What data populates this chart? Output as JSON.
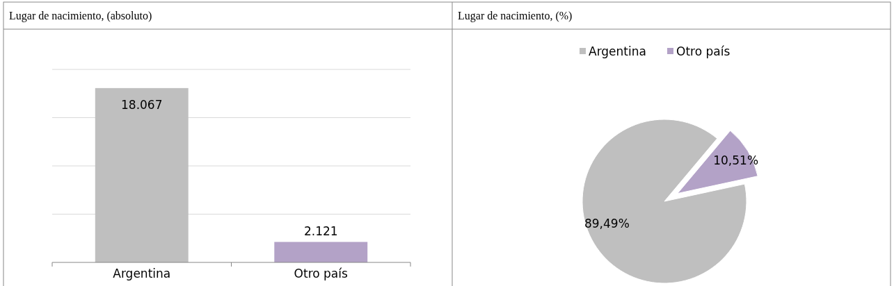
{
  "chart_data": [
    {
      "type": "bar",
      "title": "Lugar de nacimiento, (absoluto)",
      "categories": [
        "Argentina",
        "Otro país"
      ],
      "values": [
        18067,
        2121
      ],
      "colors": [
        "#bfbfbf",
        "#b3a2c7"
      ],
      "value_labels": [
        "18.067",
        "2.121"
      ],
      "ylim": [
        0,
        20000
      ],
      "yticks": [
        {
          "value": 0,
          "label": null
        },
        {
          "value": 5000,
          "label": null
        },
        {
          "value": 10000,
          "label": null
        },
        {
          "value": 15000,
          "label": null
        },
        {
          "value": 20000,
          "label": null
        }
      ],
      "grid": "y",
      "tick_labels": "x"
    },
    {
      "type": "pie",
      "title": "Lugar de nacimiento, (%)",
      "categories": [
        "Argentina",
        "Otro país"
      ],
      "values": [
        89.49,
        10.51
      ],
      "colors": [
        "#bfbfbf",
        "#b3a2c7"
      ],
      "value_labels": [
        "89,49%",
        "10,51%"
      ],
      "legend": "top"
    }
  ]
}
